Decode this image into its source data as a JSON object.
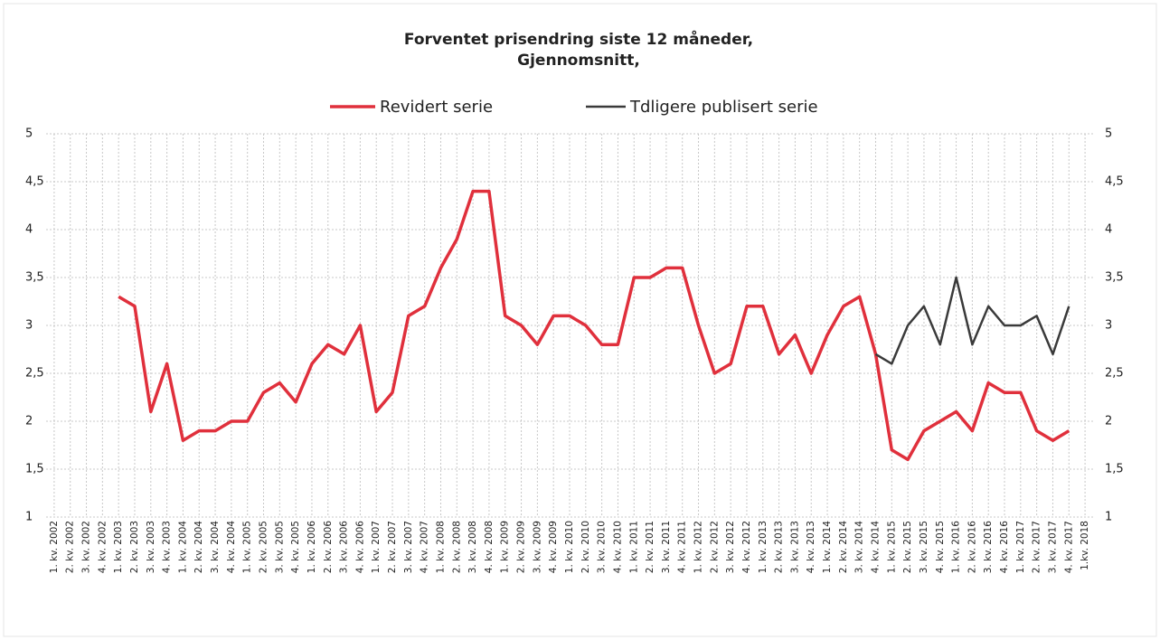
{
  "chart_data": {
    "type": "line",
    "title": "Forventet prisendring siste 12 måneder,",
    "subtitle": "Gjennomsnitt,",
    "categories": [
      "1. kv. 2002",
      "2. kv. 2002",
      "3. kv. 2002",
      "4. kv. 2002",
      "1. kv. 2003",
      "2. kv. 2003",
      "3. kv. 2003",
      "4. kv. 2003",
      "1. kv. 2004",
      "2. kv. 2004",
      "3. kv. 2004",
      "4. kv. 2004",
      "1. kv. 2005",
      "2. kv. 2005",
      "3. kv. 2005",
      "4. kv. 2005",
      "1. kv. 2006",
      "2. kv. 2006",
      "3. kv. 2006",
      "4. kv. 2006",
      "1. kv. 2007",
      "2. kv. 2007",
      "3. kv. 2007",
      "4. kv. 2007",
      "1. kv. 2008",
      "2. kv. 2008",
      "3. kv. 2008",
      "4. kv. 2008",
      "1. kv. 2009",
      "2. kv. 2009",
      "3. kv. 2009",
      "4. kv. 2009",
      "1. kv. 2010",
      "2. kv. 2010",
      "3. kv. 2010",
      "4. kv. 2010",
      "1. kv. 2011",
      "2. kv. 2011",
      "3. kv. 2011",
      "4. kv. 2011",
      "1. kv. 2012",
      "2. kv. 2012",
      "3. kv. 2012",
      "4. kv. 2012",
      "1. kv. 2013",
      "2. kv. 2013",
      "3. kv. 2013",
      "4. kv. 2013",
      "1. kv. 2014",
      "2. kv. 2014",
      "3. kv. 2014",
      "4. kv. 2014",
      "1. kv. 2015",
      "2. kv. 2015",
      "3. kv. 2015",
      "4. kv. 2015",
      "1. kv. 2016",
      "2. kv. 2016",
      "3. kv. 2016",
      "4. kv. 2016",
      "1. kv. 2017",
      "2. kv. 2017",
      "3. kv. 2017",
      "4. kv. 2017",
      "1.kv. 2018"
    ],
    "series": [
      {
        "name": "Revidert serie",
        "color": "#e0303c",
        "values": [
          null,
          null,
          null,
          null,
          3.3,
          3.2,
          2.1,
          2.6,
          1.8,
          1.9,
          1.9,
          2.0,
          2.0,
          2.3,
          2.4,
          2.2,
          2.6,
          2.8,
          2.7,
          3.0,
          2.1,
          2.3,
          3.1,
          3.2,
          3.6,
          3.9,
          4.4,
          4.4,
          3.1,
          3.0,
          2.8,
          3.1,
          3.1,
          3.0,
          2.8,
          2.8,
          3.5,
          3.5,
          3.6,
          3.6,
          3.0,
          2.5,
          2.6,
          3.2,
          3.2,
          2.7,
          2.9,
          2.5,
          2.9,
          3.2,
          3.3,
          2.7,
          1.7,
          1.6,
          1.9,
          2.0,
          2.1,
          1.9,
          2.4,
          2.3,
          2.3,
          1.9,
          1.8,
          1.9,
          null
        ]
      },
      {
        "name": "Tdligere publisert serie",
        "color": "#3a3a3a",
        "values": [
          null,
          null,
          null,
          null,
          null,
          null,
          null,
          null,
          null,
          null,
          null,
          null,
          null,
          null,
          null,
          null,
          null,
          null,
          null,
          null,
          null,
          null,
          null,
          null,
          null,
          null,
          null,
          null,
          null,
          null,
          null,
          null,
          null,
          null,
          null,
          null,
          null,
          null,
          null,
          null,
          null,
          null,
          null,
          null,
          null,
          null,
          null,
          null,
          null,
          null,
          null,
          2.7,
          2.6,
          3.0,
          3.2,
          2.8,
          3.5,
          2.8,
          3.2,
          3.0,
          3.0,
          3.1,
          2.7,
          3.2,
          null
        ]
      }
    ],
    "ylim": [
      1,
      5
    ],
    "yticks": [
      1,
      {
        "value": 1.5,
        "label": "1,5"
      },
      2,
      {
        "value": 2.5,
        "label": "2,5"
      },
      3,
      {
        "value": 3.5,
        "label": "3,5"
      },
      4,
      {
        "value": 4.5,
        "label": "4,5"
      },
      5
    ],
    "y2lim": [
      1,
      5
    ],
    "y2ticks": [
      1,
      {
        "value": 1.5,
        "label": "1,5"
      },
      2,
      {
        "value": 2.5,
        "label": "2,5"
      },
      3,
      {
        "value": 3.5,
        "label": "3,5"
      },
      4,
      {
        "value": 4.5,
        "label": "4,5"
      },
      5
    ],
    "grid": true,
    "legend": "top"
  }
}
